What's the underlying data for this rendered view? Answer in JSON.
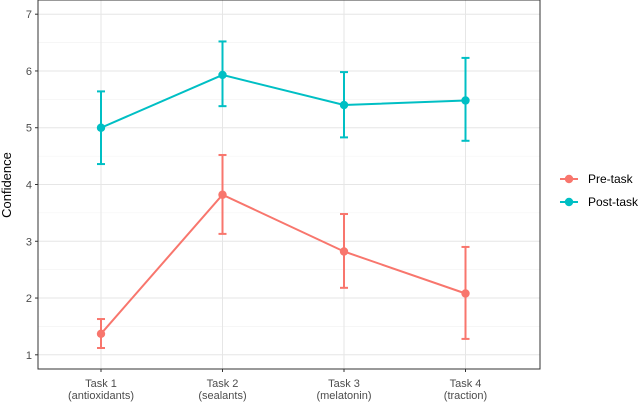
{
  "chart_data": {
    "type": "line",
    "title": "",
    "xlabel": "",
    "ylabel": "Confidence",
    "ylim": [
      0.75,
      7.25
    ],
    "yticks": [
      1,
      2,
      3,
      4,
      5,
      6,
      7
    ],
    "grid": true,
    "legend_position": "right",
    "categories": [
      [
        "Task 1",
        "(antioxidants)"
      ],
      [
        "Task 2",
        "(sealants)"
      ],
      [
        "Task 3",
        "(melatonin)"
      ],
      [
        "Task 4",
        "(traction)"
      ]
    ],
    "series": [
      {
        "name": "Pre-task",
        "color": "#F8766D",
        "values": [
          1.37,
          3.82,
          2.82,
          2.08
        ],
        "error_low": [
          1.12,
          3.13,
          2.18,
          1.28
        ],
        "error_high": [
          1.63,
          4.52,
          3.48,
          2.9
        ]
      },
      {
        "name": "Post-task",
        "color": "#00BFC4",
        "values": [
          5.0,
          5.93,
          5.4,
          5.48
        ],
        "error_low": [
          4.36,
          5.38,
          4.83,
          4.77
        ],
        "error_high": [
          5.64,
          6.52,
          5.98,
          6.23
        ]
      }
    ]
  }
}
